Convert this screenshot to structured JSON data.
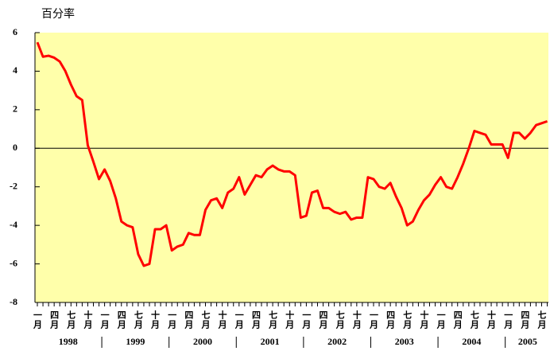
{
  "chart_data": {
    "type": "line",
    "y_axis_label": "百分率",
    "categories": [
      "一月",
      null,
      null,
      "四月",
      null,
      null,
      "七月",
      null,
      null,
      "十月",
      null,
      null,
      "一月",
      null,
      null,
      "四月",
      null,
      null,
      "七月",
      null,
      null,
      "十月",
      null,
      null,
      "一月",
      null,
      null,
      "四月",
      null,
      null,
      "七月",
      null,
      null,
      "十月",
      null,
      null,
      "一月",
      null,
      null,
      "四月",
      null,
      null,
      "七月",
      null,
      null,
      "十月",
      null,
      null,
      "一月",
      null,
      null,
      "四月",
      null,
      null,
      "七月",
      null,
      null,
      "十月",
      null,
      null,
      "一月",
      null,
      null,
      "四月",
      null,
      null,
      "七月",
      null,
      null,
      "十月",
      null,
      null,
      "一月",
      null,
      null,
      "四月",
      null,
      null,
      "七月",
      null,
      null,
      "十月",
      null,
      null,
      "一月",
      null,
      null,
      "四月",
      null,
      null,
      "七月",
      null
    ],
    "years": [
      "1998",
      "1999",
      "2000",
      "2001",
      "2002",
      "2003",
      "2004",
      "2005"
    ],
    "series": [
      {
        "name": null,
        "color": "#ff0000",
        "values": [
          5.5,
          4.75,
          4.8,
          4.7,
          4.5,
          4.0,
          3.3,
          2.7,
          2.5,
          0.15,
          -0.7,
          -1.6,
          -1.1,
          -1.7,
          -2.6,
          -3.8,
          -4.0,
          -4.1,
          -5.5,
          -6.1,
          -6.0,
          -4.2,
          -4.2,
          -4.0,
          -5.3,
          -5.1,
          -5.0,
          -4.4,
          -4.5,
          -4.5,
          -3.2,
          -2.7,
          -2.6,
          -3.1,
          -2.3,
          -2.1,
          -1.5,
          -2.4,
          -1.9,
          -1.4,
          -1.5,
          -1.1,
          -0.9,
          -1.1,
          -1.2,
          -1.2,
          -1.4,
          -3.6,
          -3.5,
          -2.3,
          -2.2,
          -3.1,
          -3.1,
          -3.3,
          -3.4,
          -3.3,
          -3.7,
          -3.6,
          -3.6,
          -1.5,
          -1.6,
          -2.0,
          -2.1,
          -1.8,
          -2.5,
          -3.1,
          -4.0,
          -3.8,
          -3.2,
          -2.7,
          -2.4,
          -1.9,
          -1.5,
          -2.0,
          -2.1,
          -1.5,
          -0.8,
          0.0,
          0.9,
          0.8,
          0.7,
          0.2,
          0.2,
          0.2,
          -0.5,
          0.8,
          0.8,
          0.5,
          0.8,
          1.2,
          1.3,
          1.4
        ]
      }
    ],
    "ylim": [
      -8,
      6
    ],
    "yticks": [
      -8,
      -6,
      -4,
      -2,
      0,
      2,
      4,
      6
    ],
    "reference_line": 0,
    "background": "#ffffaa"
  }
}
